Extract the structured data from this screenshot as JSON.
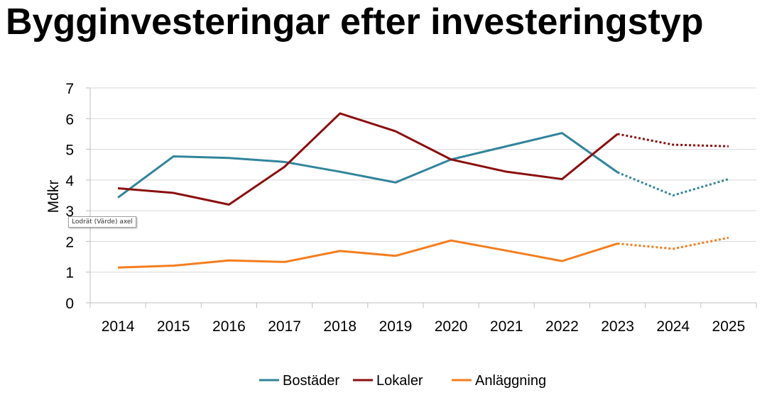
{
  "page": {
    "title": "Bygginvesteringar efter investeringstyp",
    "tooltip": "Lodrät (Värde) axel"
  },
  "chart_data": {
    "type": "line",
    "title": "Bygginvesteringar efter investeringstyp",
    "ylabel": "Mdkr",
    "xlabel": "",
    "ylim": [
      0,
      7
    ],
    "yticks": [
      0,
      1,
      2,
      3,
      4,
      5,
      6,
      7
    ],
    "grid": true,
    "legend_position": "bottom",
    "categories": [
      "2014",
      "2015",
      "2016",
      "2017",
      "2018",
      "2019",
      "2020",
      "2021",
      "2022",
      "2023",
      "2024",
      "2025"
    ],
    "forecast_from_index": 9,
    "series": [
      {
        "name": "Bostäder",
        "color": "#31849b",
        "values": [
          3.43,
          4.77,
          4.72,
          4.59,
          4.27,
          3.92,
          4.67,
          5.1,
          5.53,
          4.25,
          3.5,
          4.03
        ]
      },
      {
        "name": "Lokaler",
        "color": "#8b0f0f",
        "values": [
          3.73,
          3.58,
          3.2,
          4.43,
          6.17,
          5.59,
          4.67,
          4.27,
          4.03,
          5.5,
          5.15,
          5.1
        ]
      },
      {
        "name": "Anläggning",
        "color": "#f47d1e",
        "values": [
          1.15,
          1.21,
          1.38,
          1.33,
          1.69,
          1.53,
          2.03,
          1.7,
          1.36,
          1.93,
          1.76,
          2.12
        ]
      }
    ]
  }
}
